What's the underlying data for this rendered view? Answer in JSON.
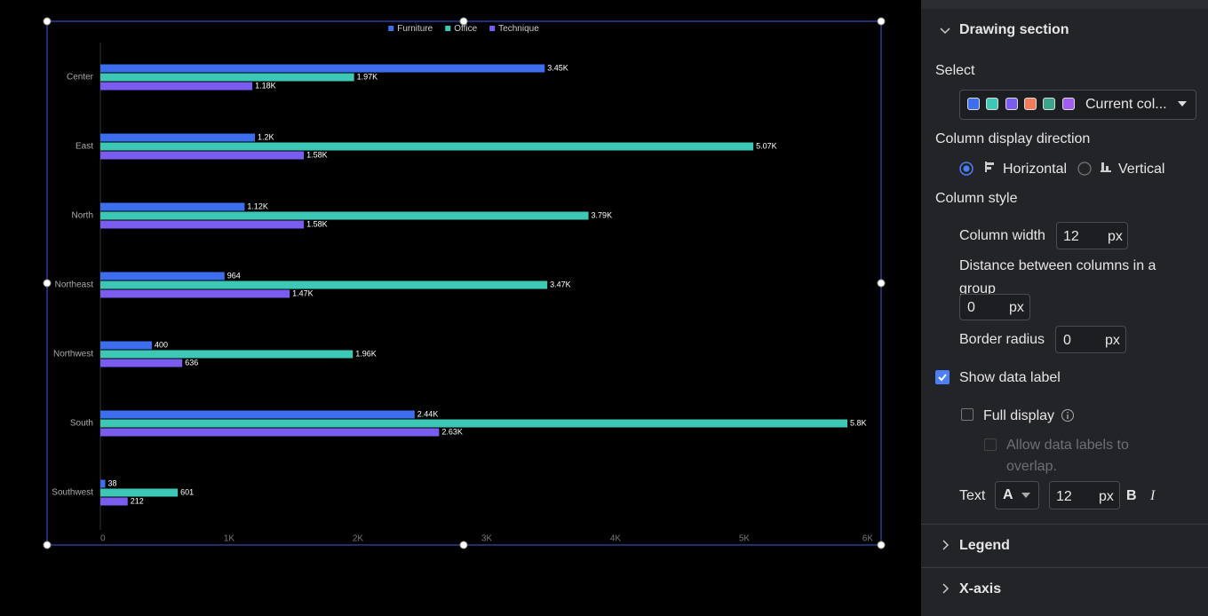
{
  "chart_data": {
    "type": "bar",
    "orientation": "horizontal",
    "categories": [
      "Center",
      "East",
      "North",
      "Northeast",
      "Northwest",
      "South",
      "Southwest"
    ],
    "series": [
      {
        "name": "Furniture",
        "color": "#3d6ef0",
        "values": [
          3450,
          1200,
          1120,
          964,
          400,
          2440,
          38
        ],
        "value_labels": [
          "3.45K",
          "1.2K",
          "1.12K",
          "964",
          "400",
          "2.44K",
          "38"
        ]
      },
      {
        "name": "Office",
        "color": "#3cc8b4",
        "values": [
          1970,
          5070,
          3790,
          3470,
          1960,
          5800,
          601
        ],
        "value_labels": [
          "1.97K",
          "5.07K",
          "3.79K",
          "3.47K",
          "1.96K",
          "5.8K",
          "601"
        ]
      },
      {
        "name": "Technique",
        "color": "#7a5cf0",
        "values": [
          1180,
          1580,
          1580,
          1470,
          636,
          2630,
          212
        ],
        "value_labels": [
          "1.18K",
          "1.58K",
          "1.58K",
          "1.47K",
          "636",
          "2.63K",
          "212"
        ]
      }
    ],
    "xlim": [
      0,
      6000
    ],
    "xticks": [
      0,
      {
        "value": 1000,
        "label": "1K"
      },
      {
        "value": 2000,
        "label": "2K"
      },
      {
        "value": 3000,
        "label": "3K"
      },
      {
        "value": 4000,
        "label": "4K"
      },
      {
        "value": 5000,
        "label": "5K"
      },
      {
        "value": 6000,
        "label": "6K"
      }
    ],
    "legend": "top"
  },
  "panel": {
    "section_title": "Drawing section",
    "select_label": "Select",
    "palette_colors": [
      "#3d6ef0",
      "#3cc8b4",
      "#7a5cf0",
      "#f07a5c",
      "#3aa58c",
      "#a15cf0"
    ],
    "palette_name": "Current col...",
    "direction_label": "Column display direction",
    "direction_options": [
      "Horizontal",
      "Vertical"
    ],
    "column_style_label": "Column style",
    "column_width_label": "Column width",
    "column_width_value": 12,
    "distance_label": "Distance between columns in a group",
    "distance_value": 0,
    "border_radius_label": "Border radius",
    "border_radius_value": 0,
    "unit": "px",
    "show_data_label": "Show data label",
    "full_display": "Full display",
    "allow_overlap": "Allow data labels to overlap.",
    "text_label": "Text",
    "font_glyph": "A",
    "font_size": 12,
    "bold": "B",
    "italic": "I",
    "sections": [
      "Legend",
      "X-axis"
    ]
  }
}
